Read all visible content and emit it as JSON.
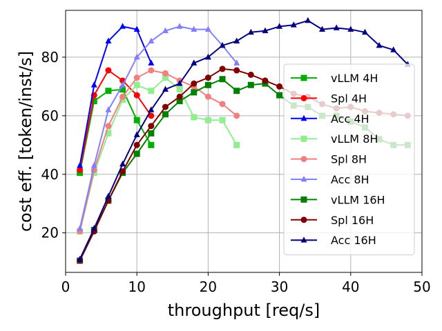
{
  "chart_data": {
    "type": "line",
    "title": "",
    "xlabel": "throughput [req/s]",
    "ylabel": "cost eff. [token/inst/s]",
    "xlim": [
      0,
      50
    ],
    "ylim": [
      6.5,
      96
    ],
    "xticks": [
      0,
      10,
      20,
      30,
      40,
      50
    ],
    "yticks": [
      20,
      40,
      60,
      80
    ],
    "grid": true,
    "legend_position": "center-right",
    "series": [
      {
        "name": "vLLM 4H",
        "color": "#00b000",
        "marker": "square",
        "x": [
          2,
          4,
          6,
          8,
          10,
          12
        ],
        "y": [
          40.5,
          65,
          68.5,
          69,
          58.5,
          50
        ]
      },
      {
        "name": "Spl 4H",
        "color": "#ff0000",
        "marker": "circle",
        "x": [
          2,
          4,
          6,
          8,
          10,
          12
        ],
        "y": [
          41.5,
          67,
          75.5,
          72,
          67,
          60
        ]
      },
      {
        "name": "Acc 4H",
        "color": "#0000ff",
        "marker": "triangle",
        "x": [
          2,
          4,
          6,
          8,
          10,
          12
        ],
        "y": [
          43,
          70.5,
          85.5,
          90.5,
          89.5,
          78
        ]
      },
      {
        "name": "vLLM 8H",
        "color": "#90ee90",
        "marker": "square",
        "x": [
          2,
          4,
          6,
          8,
          10,
          12,
          14,
          16,
          18,
          20,
          22,
          24
        ],
        "y": [
          20.5,
          40.5,
          54,
          65.5,
          70.5,
          68.5,
          73,
          69,
          59.5,
          58.5,
          58.5,
          50
        ]
      },
      {
        "name": "Spl 8H",
        "color": "#f08080",
        "marker": "circle",
        "x": [
          2,
          4,
          6,
          8,
          10,
          12,
          14,
          16,
          18,
          20,
          22,
          24
        ],
        "y": [
          20.5,
          41.5,
          56.5,
          66.5,
          73,
          75.5,
          74.5,
          72,
          70,
          66.5,
          64,
          60
        ]
      },
      {
        "name": "Acc 8H",
        "color": "#8080ff",
        "marker": "triangle",
        "x": [
          2,
          4,
          6,
          8,
          10,
          12,
          14,
          16,
          18,
          20,
          22,
          24
        ],
        "y": [
          21.5,
          43,
          62,
          70.5,
          80,
          85.5,
          89,
          90.5,
          89.5,
          89.5,
          84,
          78
        ]
      },
      {
        "name": "vLLM 16H",
        "color": "#008000",
        "marker": "square",
        "x": [
          2,
          4,
          6,
          8,
          10,
          12,
          14,
          16,
          18,
          20,
          22,
          24,
          26,
          28,
          30,
          32,
          34,
          36,
          38,
          40,
          42,
          44,
          46,
          48
        ],
        "y": [
          10.5,
          21,
          31,
          40.5,
          47,
          54,
          60.5,
          65,
          68,
          70.5,
          72.5,
          68.5,
          70.5,
          71,
          67,
          63.5,
          63,
          60,
          60,
          58,
          56,
          52,
          50,
          50
        ]
      },
      {
        "name": "Spl 16H",
        "color": "#800000",
        "marker": "circle",
        "x": [
          2,
          4,
          6,
          8,
          10,
          12,
          14,
          16,
          18,
          20,
          22,
          24,
          26,
          28,
          30,
          32,
          34,
          36,
          38,
          40,
          42,
          44,
          46,
          48
        ],
        "y": [
          10.5,
          20.5,
          31,
          41,
          50,
          56.5,
          63,
          66.5,
          71,
          73,
          76,
          75.5,
          74,
          72,
          70,
          67.5,
          66.5,
          64,
          62.5,
          63,
          61.5,
          61,
          60.5,
          60
        ]
      },
      {
        "name": "Acc 16H",
        "color": "#000080",
        "marker": "triangle",
        "x": [
          2,
          4,
          6,
          8,
          10,
          12,
          14,
          16,
          18,
          20,
          22,
          24,
          26,
          28,
          30,
          32,
          34,
          36,
          38,
          40,
          42,
          44,
          46,
          48
        ],
        "y": [
          11,
          21.5,
          32.5,
          43.5,
          53.5,
          62,
          69,
          71,
          78,
          80,
          84,
          85.5,
          88.5,
          89,
          90.5,
          91,
          92.5,
          89.5,
          90,
          89.5,
          88.5,
          84,
          82.5,
          77.5
        ]
      }
    ]
  }
}
